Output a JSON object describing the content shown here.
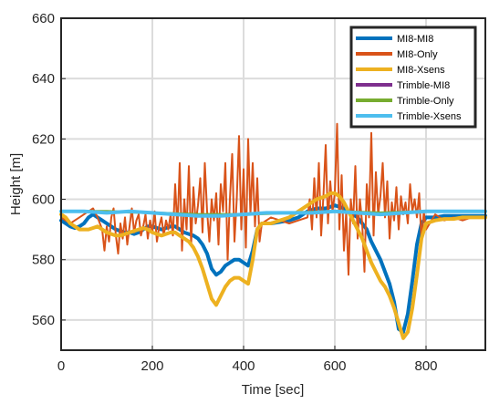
{
  "chart_data": {
    "type": "line",
    "title": "",
    "xlabel": "Time [sec]",
    "ylabel": "Height [m]",
    "xlim": [
      0,
      930
    ],
    "ylim": [
      550,
      660
    ],
    "xticks": [
      0,
      200,
      400,
      600,
      800
    ],
    "yticks": [
      560,
      580,
      600,
      620,
      640,
      660
    ],
    "grid": true,
    "legend_position": "top-right",
    "series": [
      {
        "name": "MI8-MI8",
        "color": "#0072BD",
        "x": [
          0,
          10,
          20,
          30,
          40,
          50,
          60,
          70,
          80,
          90,
          100,
          110,
          120,
          130,
          140,
          150,
          160,
          170,
          180,
          190,
          200,
          210,
          220,
          230,
          240,
          250,
          260,
          270,
          280,
          290,
          300,
          310,
          320,
          330,
          340,
          350,
          360,
          370,
          380,
          390,
          400,
          410,
          420,
          430,
          440,
          460,
          480,
          500,
          520,
          540,
          560,
          580,
          600,
          620,
          640,
          650,
          660,
          670,
          680,
          690,
          700,
          710,
          720,
          730,
          740,
          750,
          760,
          770,
          780,
          790,
          800,
          820,
          840,
          860,
          880,
          900,
          930
        ],
        "y": [
          593,
          592,
          591,
          590.5,
          591,
          592,
          594,
          595,
          594,
          593,
          592,
          591,
          590,
          589.5,
          589,
          589,
          588.5,
          589,
          590,
          591,
          591,
          590.5,
          590,
          590.5,
          591,
          591,
          590,
          589,
          588.5,
          588,
          587,
          585,
          582,
          577,
          575,
          576,
          578,
          579,
          580,
          580,
          579,
          578,
          583,
          590,
          592,
          592,
          592.5,
          593,
          594,
          596,
          597,
          597,
          598,
          597,
          595,
          594,
          592,
          590,
          586,
          583,
          580,
          576,
          572,
          566,
          557,
          556,
          562,
          573,
          585,
          592,
          594,
          594,
          594.5,
          594.5,
          594.5,
          594.5,
          594.5
        ]
      },
      {
        "name": "MI8-Only",
        "color": "#D95319",
        "x": [
          0,
          10,
          20,
          30,
          40,
          50,
          60,
          70,
          80,
          90,
          95,
          100,
          105,
          110,
          115,
          120,
          125,
          130,
          135,
          140,
          145,
          150,
          155,
          160,
          165,
          170,
          175,
          180,
          185,
          190,
          195,
          200,
          205,
          210,
          215,
          220,
          225,
          230,
          235,
          240,
          245,
          250,
          255,
          260,
          265,
          270,
          275,
          280,
          285,
          290,
          295,
          300,
          305,
          310,
          315,
          320,
          325,
          330,
          335,
          340,
          345,
          350,
          355,
          360,
          365,
          370,
          375,
          380,
          385,
          390,
          395,
          400,
          405,
          410,
          415,
          420,
          425,
          430,
          435,
          440,
          460,
          480,
          500,
          520,
          540,
          545,
          550,
          555,
          560,
          565,
          570,
          575,
          580,
          585,
          590,
          595,
          600,
          605,
          610,
          615,
          620,
          625,
          630,
          635,
          640,
          645,
          650,
          655,
          660,
          665,
          670,
          675,
          680,
          685,
          690,
          695,
          700,
          705,
          710,
          715,
          720,
          725,
          730,
          735,
          740,
          745,
          750,
          755,
          760,
          765,
          770,
          775,
          780,
          785,
          790,
          795,
          800,
          820,
          840,
          860,
          880,
          900,
          930
        ],
        "y": [
          594,
          593,
          592,
          593,
          594,
          595,
          596,
          597,
          594,
          590,
          583,
          591,
          586,
          594,
          597,
          588,
          582,
          592,
          587,
          594,
          585,
          591,
          597,
          589,
          593,
          595,
          588,
          591,
          595,
          587,
          593,
          589,
          596,
          586,
          591,
          594,
          588,
          593,
          590,
          595,
          588,
          605,
          590,
          612,
          583,
          600,
          590,
          611,
          585,
          604,
          592,
          598,
          607,
          589,
          612,
          596,
          586,
          600,
          593,
          602,
          585,
          605,
          596,
          612,
          580,
          600,
          615,
          586,
          600,
          621,
          590,
          610,
          584,
          620,
          595,
          612,
          591,
          607,
          586,
          592,
          594,
          593,
          592,
          593,
          594,
          600,
          590,
          607,
          594,
          612,
          588,
          601,
          618,
          592,
          606,
          596,
          602,
          625,
          590,
          608,
          583,
          596,
          575,
          600,
          592,
          611,
          587,
          600,
          592,
          576,
          605,
          594,
          622,
          588,
          609,
          595,
          601,
          612,
          594,
          606,
          587,
          599,
          593,
          604,
          590,
          601,
          595,
          599,
          592,
          605,
          596,
          600,
          594,
          602,
          586,
          596,
          590,
          595,
          593,
          594,
          593,
          594,
          594
        ]
      },
      {
        "name": "MI8-Xsens",
        "color": "#EDB120",
        "x": [
          0,
          10,
          20,
          30,
          40,
          50,
          60,
          70,
          80,
          90,
          100,
          110,
          120,
          130,
          140,
          150,
          160,
          170,
          180,
          190,
          200,
          210,
          220,
          230,
          240,
          250,
          260,
          270,
          280,
          290,
          300,
          310,
          320,
          330,
          340,
          350,
          360,
          370,
          380,
          390,
          400,
          410,
          420,
          430,
          440,
          460,
          480,
          500,
          520,
          540,
          560,
          580,
          590,
          600,
          610,
          620,
          630,
          640,
          650,
          660,
          670,
          680,
          690,
          700,
          710,
          720,
          730,
          740,
          750,
          760,
          770,
          780,
          790,
          800,
          820,
          840,
          860,
          880,
          900,
          930
        ],
        "y": [
          595,
          594,
          592,
          591,
          590,
          590,
          590,
          590.5,
          591,
          590,
          589,
          588.5,
          588,
          588,
          588.5,
          589,
          589.5,
          590,
          590.5,
          590,
          589,
          588.5,
          588,
          588.5,
          589,
          589,
          588,
          587,
          586,
          584,
          581,
          577,
          572,
          567,
          565,
          568,
          571,
          573,
          574,
          574,
          573,
          572,
          580,
          590,
          592,
          592,
          593,
          594,
          596,
          598,
          600,
          601,
          602,
          602,
          601,
          599,
          596,
          593,
          590,
          587,
          583,
          579,
          576,
          573,
          571,
          568,
          564,
          559,
          554,
          556,
          564,
          575,
          587,
          592,
          593,
          593.5,
          593.5,
          594,
          594,
          594
        ]
      },
      {
        "name": "Trimble-MI8",
        "color": "#7E2F8E",
        "x": [
          0,
          100,
          200,
          300,
          400,
          500,
          600,
          700,
          800,
          930
        ],
        "y": [
          596,
          596,
          595.5,
          595,
          595,
          595.5,
          596,
          595.5,
          596,
          596
        ]
      },
      {
        "name": "Trimble-Only",
        "color": "#77AC30",
        "x": [
          0,
          100,
          200,
          300,
          400,
          500,
          600,
          700,
          800,
          930
        ],
        "y": [
          596,
          596,
          595.5,
          595,
          595,
          595.5,
          596,
          595.5,
          596,
          596
        ]
      },
      {
        "name": "Trimble-Xsens",
        "color": "#4DBEEE",
        "x": [
          0,
          50,
          100,
          150,
          200,
          250,
          300,
          350,
          400,
          450,
          500,
          550,
          600,
          650,
          700,
          750,
          800,
          850,
          930
        ],
        "y": [
          596,
          596,
          595.5,
          596,
          595.5,
          595,
          594.5,
          594.5,
          595,
          595.5,
          595.5,
          595.5,
          596,
          595.5,
          595,
          595.5,
          596,
          596,
          596
        ]
      }
    ]
  }
}
